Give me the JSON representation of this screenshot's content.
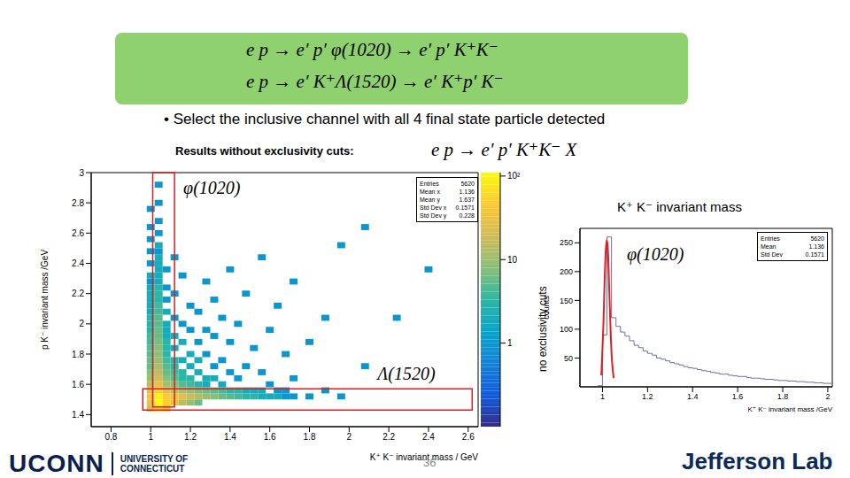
{
  "slide": {
    "header": [
      "e p → e′ p′ φ(1020) → e′ p′ K⁺K⁻",
      "e p → e′ K⁺Λ(1520) → e′ K⁺p′ K⁻"
    ],
    "bullet": "• Select the inclusive channel with all 4 final state particle detected",
    "subtitle": "Results without exclusivity cuts:",
    "subtitle_equation": "e p → e′ p′ K⁺K⁻ X",
    "page": "36",
    "logos": {
      "left": [
        "UCONN",
        "UNIVERSITY OF",
        "CONNECTICUT"
      ],
      "right": "Jefferson Lab"
    }
  },
  "chart_data": [
    {
      "type": "heatmap",
      "xlabel": "K⁺ K⁻ invariant mass / GeV",
      "ylabel": "p K⁻ invariant mass /GeV",
      "xlim": [
        0.7,
        2.65
      ],
      "ylim": [
        1.32,
        3.0
      ],
      "xticks": [
        0.8,
        1,
        1.2,
        1.4,
        1.6,
        1.8,
        2,
        2.2,
        2.4,
        2.6
      ],
      "yticks": [
        1.4,
        1.6,
        1.8,
        2,
        2.2,
        2.4,
        2.6,
        2.8,
        3
      ],
      "x_bin_width": 0.04,
      "y_bin_width": 0.04,
      "cells": [
        [
          0.98,
          1.42,
          20
        ],
        [
          0.98,
          1.46,
          30
        ],
        [
          0.98,
          1.5,
          40
        ],
        [
          0.98,
          1.54,
          25
        ],
        [
          0.98,
          1.58,
          15
        ],
        [
          0.98,
          1.62,
          10
        ],
        [
          0.98,
          1.66,
          8
        ],
        [
          0.98,
          1.7,
          6
        ],
        [
          0.98,
          1.74,
          6
        ],
        [
          0.98,
          1.78,
          5
        ],
        [
          0.98,
          1.82,
          5
        ],
        [
          0.98,
          1.86,
          4
        ],
        [
          0.98,
          1.9,
          4
        ],
        [
          0.98,
          1.94,
          3
        ],
        [
          0.98,
          1.98,
          3
        ],
        [
          0.98,
          2.02,
          3
        ],
        [
          0.98,
          2.06,
          2
        ],
        [
          0.98,
          2.1,
          2
        ],
        [
          0.98,
          2.14,
          2
        ],
        [
          0.98,
          2.18,
          2
        ],
        [
          0.98,
          2.22,
          2
        ],
        [
          0.98,
          2.26,
          1
        ],
        [
          0.98,
          2.3,
          2
        ],
        [
          0.98,
          2.38,
          1
        ],
        [
          0.98,
          2.46,
          1
        ],
        [
          0.98,
          2.54,
          1
        ],
        [
          0.98,
          2.62,
          1
        ],
        [
          0.98,
          2.74,
          1
        ],
        [
          1.02,
          1.42,
          60
        ],
        [
          1.02,
          1.46,
          110
        ],
        [
          1.02,
          1.5,
          90
        ],
        [
          1.02,
          1.54,
          50
        ],
        [
          1.02,
          1.58,
          30
        ],
        [
          1.02,
          1.62,
          20
        ],
        [
          1.02,
          1.66,
          15
        ],
        [
          1.02,
          1.7,
          12
        ],
        [
          1.02,
          1.74,
          10
        ],
        [
          1.02,
          1.78,
          9
        ],
        [
          1.02,
          1.82,
          8
        ],
        [
          1.02,
          1.86,
          7
        ],
        [
          1.02,
          1.9,
          6
        ],
        [
          1.02,
          1.94,
          6
        ],
        [
          1.02,
          1.98,
          5
        ],
        [
          1.02,
          2.02,
          5
        ],
        [
          1.02,
          2.06,
          4
        ],
        [
          1.02,
          2.1,
          4
        ],
        [
          1.02,
          2.14,
          3
        ],
        [
          1.02,
          2.18,
          3
        ],
        [
          1.02,
          2.22,
          3
        ],
        [
          1.02,
          2.26,
          2
        ],
        [
          1.02,
          2.3,
          2
        ],
        [
          1.02,
          2.34,
          2
        ],
        [
          1.02,
          2.38,
          2
        ],
        [
          1.02,
          2.42,
          2
        ],
        [
          1.02,
          2.46,
          1
        ],
        [
          1.02,
          2.5,
          2
        ],
        [
          1.02,
          2.58,
          1
        ],
        [
          1.02,
          2.66,
          1
        ],
        [
          1.02,
          2.78,
          1
        ],
        [
          1.02,
          2.9,
          1
        ],
        [
          1.06,
          1.42,
          30
        ],
        [
          1.06,
          1.46,
          50
        ],
        [
          1.06,
          1.5,
          45
        ],
        [
          1.06,
          1.54,
          25
        ],
        [
          1.06,
          1.58,
          12
        ],
        [
          1.06,
          1.62,
          8
        ],
        [
          1.06,
          1.66,
          6
        ],
        [
          1.06,
          1.7,
          5
        ],
        [
          1.06,
          1.74,
          4
        ],
        [
          1.06,
          1.78,
          3
        ],
        [
          1.06,
          1.82,
          3
        ],
        [
          1.06,
          1.86,
          3
        ],
        [
          1.06,
          1.9,
          2
        ],
        [
          1.06,
          1.94,
          2
        ],
        [
          1.06,
          1.98,
          2
        ],
        [
          1.06,
          2.06,
          2
        ],
        [
          1.06,
          2.14,
          1
        ],
        [
          1.06,
          2.22,
          1
        ],
        [
          1.06,
          2.34,
          1
        ],
        [
          1.1,
          1.46,
          30
        ],
        [
          1.1,
          1.5,
          35
        ],
        [
          1.1,
          1.54,
          15
        ],
        [
          1.1,
          1.58,
          8
        ],
        [
          1.1,
          1.62,
          5
        ],
        [
          1.1,
          1.66,
          4
        ],
        [
          1.1,
          1.7,
          3
        ],
        [
          1.1,
          1.74,
          3
        ],
        [
          1.1,
          1.82,
          2
        ],
        [
          1.1,
          1.9,
          2
        ],
        [
          1.1,
          2.02,
          1
        ],
        [
          1.1,
          2.18,
          1
        ],
        [
          1.1,
          2.42,
          1
        ],
        [
          1.14,
          1.46,
          15
        ],
        [
          1.14,
          1.5,
          25
        ],
        [
          1.14,
          1.54,
          12
        ],
        [
          1.14,
          1.58,
          5
        ],
        [
          1.14,
          1.62,
          3
        ],
        [
          1.14,
          1.66,
          3
        ],
        [
          1.14,
          1.74,
          2
        ],
        [
          1.14,
          1.86,
          2
        ],
        [
          1.14,
          1.98,
          1
        ],
        [
          1.14,
          2.3,
          1
        ],
        [
          1.18,
          1.46,
          10
        ],
        [
          1.18,
          1.5,
          18
        ],
        [
          1.18,
          1.54,
          9
        ],
        [
          1.18,
          1.58,
          4
        ],
        [
          1.18,
          1.62,
          3
        ],
        [
          1.18,
          1.7,
          2
        ],
        [
          1.18,
          1.78,
          2
        ],
        [
          1.18,
          1.94,
          1
        ],
        [
          1.18,
          2.1,
          1
        ],
        [
          1.22,
          1.46,
          6
        ],
        [
          1.22,
          1.5,
          14
        ],
        [
          1.22,
          1.54,
          7
        ],
        [
          1.22,
          1.58,
          3
        ],
        [
          1.22,
          1.66,
          2
        ],
        [
          1.22,
          1.74,
          2
        ],
        [
          1.22,
          1.86,
          1
        ],
        [
          1.22,
          2.06,
          1
        ],
        [
          1.26,
          1.5,
          10
        ],
        [
          1.26,
          1.54,
          6
        ],
        [
          1.26,
          1.58,
          2
        ],
        [
          1.26,
          1.62,
          2
        ],
        [
          1.26,
          1.78,
          1
        ],
        [
          1.26,
          1.94,
          1
        ],
        [
          1.26,
          2.26,
          1
        ],
        [
          1.3,
          1.5,
          8
        ],
        [
          1.3,
          1.54,
          5
        ],
        [
          1.3,
          1.62,
          2
        ],
        [
          1.3,
          1.7,
          1
        ],
        [
          1.3,
          1.9,
          1
        ],
        [
          1.3,
          2.14,
          1
        ],
        [
          1.34,
          1.5,
          6
        ],
        [
          1.34,
          1.54,
          4
        ],
        [
          1.34,
          1.58,
          2
        ],
        [
          1.34,
          1.74,
          1
        ],
        [
          1.34,
          2.02,
          1
        ],
        [
          1.38,
          1.5,
          5
        ],
        [
          1.38,
          1.54,
          3
        ],
        [
          1.38,
          1.66,
          1
        ],
        [
          1.38,
          1.86,
          1
        ],
        [
          1.38,
          2.34,
          1
        ],
        [
          1.42,
          1.5,
          4
        ],
        [
          1.42,
          1.54,
          3
        ],
        [
          1.42,
          1.62,
          1
        ],
        [
          1.42,
          1.98,
          1
        ],
        [
          1.46,
          1.5,
          3
        ],
        [
          1.46,
          1.54,
          2
        ],
        [
          1.46,
          1.7,
          1
        ],
        [
          1.46,
          2.18,
          1
        ],
        [
          1.5,
          1.5,
          3
        ],
        [
          1.5,
          1.54,
          2
        ],
        [
          1.5,
          1.82,
          1
        ],
        [
          1.54,
          1.5,
          2
        ],
        [
          1.54,
          1.54,
          2
        ],
        [
          1.54,
          1.66,
          1
        ],
        [
          1.54,
          2.42,
          1
        ],
        [
          1.58,
          1.5,
          2
        ],
        [
          1.58,
          1.58,
          1
        ],
        [
          1.58,
          1.94,
          1
        ],
        [
          1.62,
          1.5,
          2
        ],
        [
          1.62,
          1.54,
          1
        ],
        [
          1.62,
          2.1,
          1
        ],
        [
          1.66,
          1.5,
          1
        ],
        [
          1.66,
          1.54,
          1
        ],
        [
          1.66,
          1.78,
          1
        ],
        [
          1.7,
          1.5,
          1
        ],
        [
          1.7,
          1.62,
          1
        ],
        [
          1.7,
          2.26,
          1
        ],
        [
          1.78,
          1.5,
          1
        ],
        [
          1.78,
          1.86,
          1
        ],
        [
          1.86,
          1.54,
          1
        ],
        [
          1.86,
          2.02,
          1
        ],
        [
          1.94,
          1.5,
          1
        ],
        [
          1.94,
          2.5,
          1
        ],
        [
          2.06,
          1.7,
          1
        ],
        [
          2.06,
          2.62,
          1
        ],
        [
          2.22,
          2.02,
          1
        ],
        [
          2.38,
          2.34,
          1
        ]
      ],
      "colorbar_range": [
        0.1,
        110
      ],
      "colorbar_ticks": [
        1,
        10,
        {
          "value": 100,
          "label": "10²"
        }
      ],
      "regions": [
        {
          "label": "φ(1020)",
          "xlim": [
            1.01,
            1.12
          ],
          "ylim": [
            1.45,
            3.0
          ]
        },
        {
          "label": "Λ(1520)",
          "xlim": [
            0.96,
            2.62
          ],
          "ylim": [
            1.43,
            1.57
          ]
        }
      ],
      "stats": [
        {
          "label": "Entries",
          "value": 5620
        },
        {
          "label": "Mean x",
          "value": 1.136
        },
        {
          "label": "Mean y",
          "value": 1.637
        },
        {
          "label": "Std Dev x",
          "value": 0.1571
        },
        {
          "label": "Std Dev y",
          "value": 0.228
        }
      ]
    },
    {
      "type": "histogram",
      "title": "K⁺ K⁻ invariant mass",
      "annotation": "φ(1020)",
      "side_label": "no exclusivity cuts",
      "xlabel": "K⁺ K⁻ invariant mass /GeV",
      "ylabel": "counts",
      "xlim": [
        0.9,
        2.02
      ],
      "xticks": [
        1,
        1.2,
        1.4,
        1.6,
        1.8,
        2
      ],
      "ylim": [
        0,
        275
      ],
      "yticks": [
        50,
        100,
        150,
        200,
        250
      ],
      "color": "#6f6fa8",
      "bins": [
        0.96,
        0.98,
        1.0,
        1.02,
        1.04,
        1.06,
        1.08,
        1.1,
        1.12,
        1.14,
        1.16,
        1.18,
        1.2,
        1.22,
        1.24,
        1.26,
        1.28,
        1.3,
        1.32,
        1.34,
        1.36,
        1.38,
        1.4,
        1.42,
        1.44,
        1.46,
        1.48,
        1.5,
        1.52,
        1.54,
        1.56,
        1.58,
        1.6,
        1.62,
        1.64,
        1.66,
        1.68,
        1.7,
        1.72,
        1.74,
        1.76,
        1.78,
        1.8,
        1.82,
        1.84,
        1.86,
        1.88,
        1.9,
        1.92,
        1.94,
        1.96,
        1.98,
        2.0,
        2.02
      ],
      "counts": [
        0,
        2,
        90,
        260,
        120,
        105,
        95,
        88,
        80,
        72,
        68,
        62,
        58,
        55,
        50,
        48,
        45,
        42,
        40,
        38,
        35,
        33,
        32,
        30,
        28,
        27,
        25,
        24,
        22,
        22,
        20,
        19,
        18,
        18,
        16,
        15,
        15,
        14,
        13,
        13,
        12,
        11,
        11,
        10,
        10,
        9,
        9,
        8,
        8,
        7,
        7,
        6,
        6
      ],
      "fit": {
        "color": "#e02020",
        "x": [
          0.995,
          1.005,
          1.01,
          1.015,
          1.02,
          1.025,
          1.03,
          1.04,
          1.05
        ],
        "y": [
          20,
          120,
          190,
          240,
          255,
          230,
          170,
          60,
          15
        ]
      },
      "stats": [
        {
          "label": "Entries",
          "value": 5620
        },
        {
          "label": "Mean",
          "value": 1.136
        },
        {
          "label": "Std Dev",
          "value": 0.1571
        }
      ]
    }
  ]
}
